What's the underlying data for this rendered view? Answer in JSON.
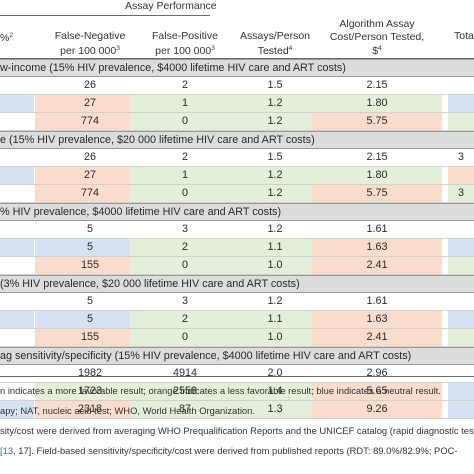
{
  "colors": {
    "favorable": "#e3efd8",
    "less_favorable": "#f9dccb",
    "neutral": "#d6e2f3",
    "none": "#ffffff"
  },
  "header": {
    "group_title": "Assay Performance",
    "cols": [
      {
        "l1": "",
        "l2": "%",
        "sup": "2"
      },
      {
        "l1": "False-Negative",
        "l2": "per 100 000",
        "sup": "3"
      },
      {
        "l1": "False-Positive",
        "l2": "per 100 000",
        "sup": "3"
      },
      {
        "l1": "Assays/Person",
        "l2": "Tested",
        "sup": "4"
      },
      {
        "l1": "Algorithm Assay",
        "l2": "Cost/Person Tested,",
        "l3": "$",
        "sup": "4"
      },
      {
        "l1": "Tota",
        "l2": "",
        "sup": ""
      }
    ]
  },
  "sections": [
    {
      "label": "w-income (15% HIV prevalence, $4000 lifetime HIV care and ART costs)",
      "rows": [
        {
          "cells": [
            "",
            "26",
            "2",
            "1.5",
            "2.15",
            ""
          ],
          "colors": [
            "none",
            "none",
            "none",
            "none",
            "none",
            "none"
          ]
        },
        {
          "cells": [
            "",
            "27",
            "1",
            "1.2",
            "1.80",
            ""
          ],
          "colors": [
            "neutral",
            "less_favorable",
            "favorable",
            "favorable",
            "favorable",
            "neutral"
          ]
        },
        {
          "cells": [
            "",
            "774",
            "0",
            "1.2",
            "5.75",
            ""
          ],
          "colors": [
            "none",
            "less_favorable",
            "favorable",
            "favorable",
            "less_favorable",
            "favorable"
          ]
        }
      ]
    },
    {
      "label": "e (15% HIV prevalence, $20 000 lifetime HIV care and ART costs)",
      "rows": [
        {
          "cells": [
            "",
            "26",
            "2",
            "1.5",
            "2.15",
            "3"
          ],
          "colors": [
            "none",
            "none",
            "none",
            "none",
            "none",
            "none"
          ]
        },
        {
          "cells": [
            "",
            "27",
            "1",
            "1.2",
            "1.80",
            ""
          ],
          "colors": [
            "neutral",
            "less_favorable",
            "favorable",
            "favorable",
            "favorable",
            "less_favorable"
          ]
        },
        {
          "cells": [
            "",
            "774",
            "0",
            "1.2",
            "5.75",
            "3"
          ],
          "colors": [
            "none",
            "less_favorable",
            "favorable",
            "favorable",
            "less_favorable",
            "favorable"
          ]
        }
      ]
    },
    {
      "label": "% HIV prevalence, $4000 lifetime HIV care and ART costs)",
      "rows": [
        {
          "cells": [
            "",
            "5",
            "3",
            "1.2",
            "1.61",
            ""
          ],
          "colors": [
            "none",
            "none",
            "none",
            "none",
            "none",
            "none"
          ]
        },
        {
          "cells": [
            "",
            "5",
            "2",
            "1.1",
            "1.63",
            ""
          ],
          "colors": [
            "neutral",
            "neutral",
            "favorable",
            "favorable",
            "less_favorable",
            "neutral"
          ]
        },
        {
          "cells": [
            "",
            "155",
            "0",
            "1.0",
            "2.41",
            ""
          ],
          "colors": [
            "none",
            "less_favorable",
            "favorable",
            "favorable",
            "less_favorable",
            "favorable"
          ]
        }
      ]
    },
    {
      "label": "(3% HIV prevalence, $20 000 lifetime HIV care and ART costs)",
      "rows": [
        {
          "cells": [
            "",
            "5",
            "3",
            "1.2",
            "1.61",
            ""
          ],
          "colors": [
            "none",
            "none",
            "none",
            "none",
            "none",
            "none"
          ]
        },
        {
          "cells": [
            "",
            "5",
            "2",
            "1.1",
            "1.63",
            ""
          ],
          "colors": [
            "neutral",
            "neutral",
            "favorable",
            "favorable",
            "less_favorable",
            "neutral"
          ]
        },
        {
          "cells": [
            "",
            "155",
            "0",
            "1.0",
            "2.41",
            ""
          ],
          "colors": [
            "none",
            "less_favorable",
            "favorable",
            "favorable",
            "less_favorable",
            "favorable"
          ]
        }
      ]
    },
    {
      "label": "ag sensitivity/specificity (15% HIV prevalence, $4000 lifetime HIV care and ART costs)",
      "rows": [
        {
          "cells": [
            "",
            "1982",
            "4914",
            "2.0",
            "2.96",
            ""
          ],
          "colors": [
            "none",
            "none",
            "none",
            "none",
            "none",
            "none"
          ]
        },
        {
          "cells": [
            "",
            "1723",
            "2558",
            "1.4",
            "5.65",
            ""
          ],
          "colors": [
            "none",
            "favorable",
            "favorable",
            "favorable",
            "less_favorable",
            "neutral"
          ]
        },
        {
          "cells": [
            "",
            "2318",
            "87",
            "1.3",
            "9.26",
            ""
          ],
          "colors": [
            "neutral",
            "less_favorable",
            "favorable",
            "favorable",
            "less_favorable",
            "neutral"
          ]
        }
      ]
    }
  ],
  "footnotes": [
    {
      "text": "n indicates a more favorable result; orange indicates a less favorable result; blue indicates a neutral result."
    },
    {
      "text": "apy; NAT, nucleic acid test; WHO, World Health Organization."
    },
    {
      "text": "sity/cost were derived from averaging WHO Prequalification Reports and the UNICEF catalog (rapid diagnostic test"
    },
    {
      "text": ", 17]. Field-based sensitivity/specificity/cost were derived from published reports (RDT: 89.0%/82.9%; POC-"
    }
  ],
  "footnote_links": {
    "ref_open": "[13",
    "close": "]"
  }
}
